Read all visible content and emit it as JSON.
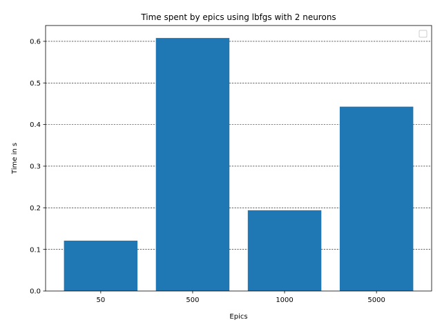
{
  "chart_data": {
    "type": "bar",
    "title": "Time spent by epics using lbfgs with 2 neurons",
    "xlabel": "Epics",
    "ylabel": "Time in s",
    "categories": [
      "50",
      "500",
      "1000",
      "5000"
    ],
    "values": [
      0.121,
      0.608,
      0.194,
      0.443
    ],
    "ylim": [
      0,
      0.638
    ],
    "yticks": [
      0.0,
      0.1,
      0.2,
      0.3,
      0.4,
      0.5,
      0.6
    ],
    "ytick_labels": [
      "0.0",
      "0.1",
      "0.2",
      "0.3",
      "0.4",
      "0.5",
      "0.6"
    ],
    "grid": "y-dashed",
    "legend_placement": "top-right",
    "colors": {
      "bar": "#1f77b4",
      "grid": "#000000",
      "axes": "#000000"
    }
  }
}
